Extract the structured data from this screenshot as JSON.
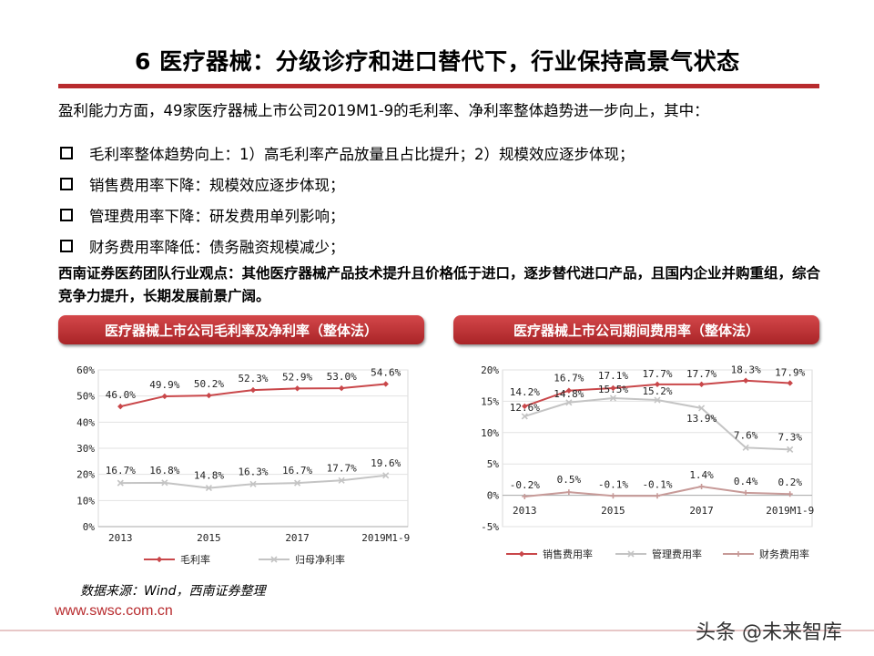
{
  "title": "6 医疗器械：分级诊疗和进口替代下，行业保持高景气状态",
  "intro": "盈利能力方面，49家医疗器械上市公司2019M1-9的毛利率、净利率整体趋势进一步向上，其中：",
  "bullets": [
    "毛利率整体趋势向上：1）高毛利率产品放量且占比提升；2）规模效应逐步体现；",
    "销售费用率下降：规模效应逐步体现；",
    "管理费用率下降：研发费用单列影响；",
    "财务费用率降低：债务融资规模减少；"
  ],
  "viewpoint": "西南证券医药团队行业观点：其他医疗器械产品技术提升且价格低于进口，逐步替代进口产品，且国内企业并购重组，综合竞争力提升，长期发展前景广阔。",
  "panel_titles": [
    "医疗器械上市公司毛利率及净利率（整体法）",
    "医疗器械上市公司期间费用率（整体法）"
  ],
  "source": "数据来源：Wind，西南证券整理",
  "url": "www.swsc.com.cn",
  "watermark": "头条 @未来智库",
  "colors": {
    "brand": "#b82b2e",
    "gross": "#c9474a",
    "net": "#c4c4c4",
    "sales": "#c9474a",
    "admin": "#c4c4c4",
    "finance": "#c79a98"
  },
  "chart_data": [
    {
      "type": "line",
      "x": [
        "2013",
        "2014",
        "2015",
        "2016",
        "2017",
        "2018",
        "2019M1-9"
      ],
      "x_tick_labels": [
        "2013",
        "2015",
        "2017",
        "2019M1-9"
      ],
      "ylim": [
        0,
        60
      ],
      "y_ticks": [
        "0%",
        "10%",
        "20%",
        "30%",
        "40%",
        "50%",
        "60%"
      ],
      "legend_position": "bottom",
      "series": [
        {
          "name": "毛利率",
          "values": [
            46.0,
            49.9,
            50.2,
            52.3,
            52.9,
            53.0,
            54.6
          ],
          "labels": [
            "46.0%",
            "49.9%",
            "50.2%",
            "52.3%",
            "52.9%",
            "53.0%",
            "54.6%"
          ]
        },
        {
          "name": "归母净利率",
          "values": [
            16.7,
            16.8,
            14.8,
            16.3,
            16.7,
            17.7,
            19.6
          ],
          "labels": [
            "16.7%",
            "16.8%",
            "14.8%",
            "16.3%",
            "16.7%",
            "17.7%",
            "19.6%"
          ]
        }
      ]
    },
    {
      "type": "line",
      "x": [
        "2013",
        "2014",
        "2015",
        "2016",
        "2017",
        "2018",
        "2019M1-9"
      ],
      "x_tick_labels": [
        "2013",
        "2015",
        "2017",
        "2019M1-9"
      ],
      "ylim": [
        -5,
        20
      ],
      "y_ticks": [
        "-5%",
        "0%",
        "5%",
        "10%",
        "15%",
        "20%"
      ],
      "legend_position": "bottom",
      "series": [
        {
          "name": "销售费用率",
          "values": [
            14.2,
            16.7,
            17.1,
            17.7,
            17.7,
            18.3,
            17.9
          ],
          "labels": [
            "14.2%",
            "16.7%",
            "17.1%",
            "17.7%",
            "17.7%",
            "18.3%",
            "17.9%"
          ]
        },
        {
          "name": "管理费用率",
          "values": [
            12.6,
            14.8,
            15.5,
            15.2,
            13.9,
            7.6,
            7.3
          ],
          "labels": [
            "12.6%",
            "14.8%",
            "15.5%",
            "15.2%",
            "13.9%",
            "7.6%",
            "7.3%"
          ]
        },
        {
          "name": "财务费用率",
          "values": [
            -0.2,
            0.5,
            -0.1,
            -0.1,
            1.4,
            0.4,
            0.2
          ],
          "labels": [
            "-0.2%",
            "0.5%",
            "-0.1%",
            "-0.1%",
            "1.4%",
            "0.4%",
            "0.2%"
          ]
        }
      ]
    }
  ]
}
